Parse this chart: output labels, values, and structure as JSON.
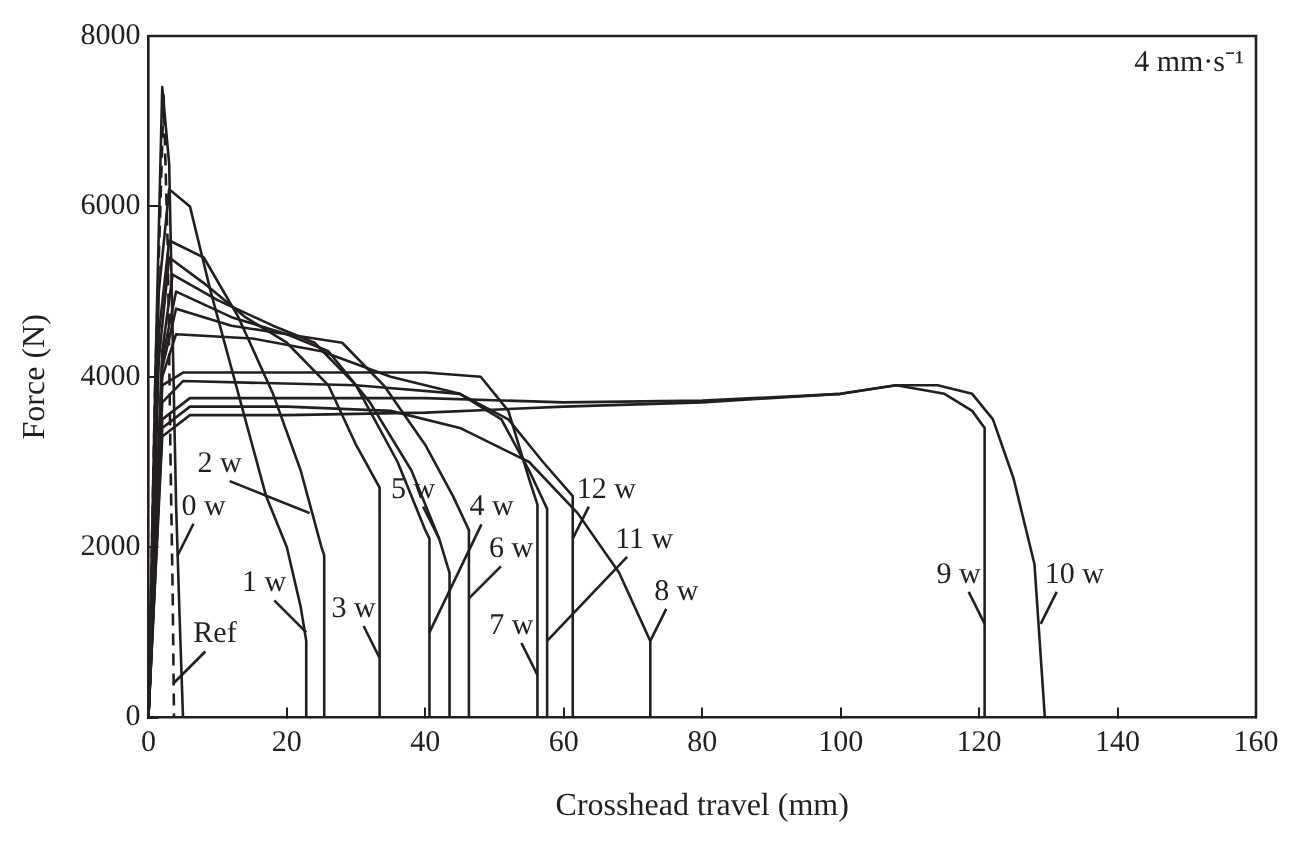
{
  "chart_data": {
    "type": "line",
    "xlabel": "Crosshead travel (mm)",
    "ylabel": "Force (N)",
    "xlim": [
      0,
      160
    ],
    "ylim": [
      0,
      8000
    ],
    "xticks": [
      0,
      20,
      40,
      60,
      80,
      100,
      120,
      140,
      160
    ],
    "yticks": [
      0,
      2000,
      4000,
      6000,
      8000
    ],
    "grid": false,
    "legend": false,
    "marker": "none",
    "series": [
      {
        "color": "#231f20",
        "line_style": "dashed",
        "x": [
          0,
          1,
          2.2,
          2.8,
          3.2,
          3.5,
          3.7
        ],
        "values": [
          0,
          4000,
          7300,
          5500,
          3000,
          1500,
          0
        ]
      },
      {
        "color": "#231f20",
        "x": [
          0,
          1,
          2,
          3,
          3.5,
          4,
          4.5,
          5
        ],
        "values": [
          0,
          4000,
          7400,
          6500,
          4500,
          2500,
          1200,
          0
        ]
      },
      {
        "color": "#231f20",
        "x": [
          0,
          1.5,
          3,
          6,
          9,
          13,
          17,
          20,
          22,
          22.8,
          22.8
        ],
        "values": [
          0,
          5000,
          6200,
          6000,
          5000,
          3800,
          2600,
          2000,
          1300,
          900,
          0
        ]
      },
      {
        "color": "#231f20",
        "x": [
          0,
          1.5,
          3,
          8,
          13,
          18,
          22,
          25,
          25.4,
          25.4
        ],
        "values": [
          0,
          4500,
          5600,
          5400,
          4700,
          3800,
          2900,
          2000,
          1900,
          0
        ]
      },
      {
        "color": "#231f20",
        "x": [
          0,
          1.5,
          3,
          8,
          14,
          20,
          26,
          30,
          33.4,
          33.4
        ],
        "values": [
          0,
          4200,
          5400,
          5100,
          4700,
          4400,
          3900,
          3200,
          2700,
          0
        ]
      },
      {
        "color": "#231f20",
        "x": [
          0,
          2,
          3.5,
          10,
          18,
          24,
          30,
          36,
          40,
          40.6,
          40.6
        ],
        "values": [
          0,
          4300,
          5200,
          4900,
          4600,
          4400,
          3900,
          3000,
          2200,
          2100,
          0
        ]
      },
      {
        "color": "#231f20",
        "x": [
          0,
          2,
          4,
          12,
          20,
          26,
          32,
          38,
          42,
          43.5,
          43.5
        ],
        "values": [
          0,
          4200,
          5000,
          4700,
          4500,
          4300,
          3700,
          2900,
          2100,
          1700,
          0
        ]
      },
      {
        "color": "#231f20",
        "x": [
          0,
          2,
          4,
          12,
          20,
          28,
          34,
          40,
          44,
          46.3,
          46.3
        ],
        "values": [
          0,
          4100,
          4800,
          4600,
          4500,
          4400,
          3900,
          3200,
          2600,
          2200,
          0
        ]
      },
      {
        "color": "#231f20",
        "x": [
          0,
          2,
          5,
          20,
          40,
          48,
          52,
          55,
          56.2,
          56.2
        ],
        "values": [
          0,
          3900,
          4050,
          4050,
          4050,
          4000,
          3600,
          2800,
          2500,
          0
        ]
      },
      {
        "color": "#231f20",
        "x": [
          0,
          2,
          6,
          20,
          35,
          45,
          55,
          62,
          68,
          72.5,
          72.5
        ],
        "values": [
          0,
          3400,
          3650,
          3650,
          3600,
          3400,
          3000,
          2400,
          1700,
          900,
          0
        ]
      },
      {
        "color": "#231f20",
        "x": [
          0,
          2,
          6,
          20,
          40,
          60,
          80,
          100,
          108,
          115,
          119,
          120.8,
          120.8
        ],
        "values": [
          0,
          3500,
          3750,
          3750,
          3750,
          3700,
          3720,
          3800,
          3900,
          3800,
          3600,
          3400,
          0
        ]
      },
      {
        "color": "#231f20",
        "x": [
          0,
          2,
          6,
          20,
          40,
          60,
          80,
          100,
          108,
          114,
          119,
          122,
          125,
          128,
          129.5
        ],
        "values": [
          0,
          3300,
          3550,
          3550,
          3580,
          3650,
          3700,
          3800,
          3900,
          3900,
          3800,
          3500,
          2800,
          1800,
          0
        ]
      },
      {
        "color": "#231f20",
        "x": [
          0,
          2,
          4,
          15,
          25,
          35,
          45,
          51,
          55,
          57.6,
          57.6
        ],
        "values": [
          0,
          4000,
          4500,
          4450,
          4300,
          4000,
          3800,
          3500,
          2900,
          2450,
          0
        ]
      },
      {
        "color": "#231f20",
        "x": [
          0,
          2,
          5,
          30,
          45,
          52,
          57,
          61.3,
          61.3
        ],
        "values": [
          0,
          3700,
          3950,
          3900,
          3800,
          3500,
          3000,
          2600,
          0
        ]
      }
    ],
    "annotations": [
      "4 mm·s⁻¹",
      {
        "text": "Ref",
        "x": 3.6,
        "y": 400
      },
      {
        "text": "0 w",
        "x": 4.2,
        "y": 1900
      },
      {
        "text": "1 w",
        "x": 22.8,
        "y": 1000
      },
      {
        "text": "2 w",
        "x": 23.3,
        "y": 2400
      },
      {
        "text": "3 w",
        "x": 33.4,
        "y": 700
      },
      {
        "text": "4 w",
        "x": 40.6,
        "y": 1000
      },
      {
        "text": "5 w",
        "x": 42,
        "y": 2100
      },
      {
        "text": "6 w",
        "x": 46.3,
        "y": 1400
      },
      {
        "text": "7 w",
        "x": 56.2,
        "y": 500
      },
      {
        "text": "8 w",
        "x": 72.5,
        "y": 900
      },
      {
        "text": "9 w",
        "x": 120.8,
        "y": 1100
      },
      {
        "text": "10 w",
        "x": 128.9,
        "y": 1100
      },
      {
        "text": "11 w",
        "x": 57.6,
        "y": 900
      },
      {
        "text": "12 w",
        "x": 61.3,
        "y": 2100
      }
    ]
  }
}
